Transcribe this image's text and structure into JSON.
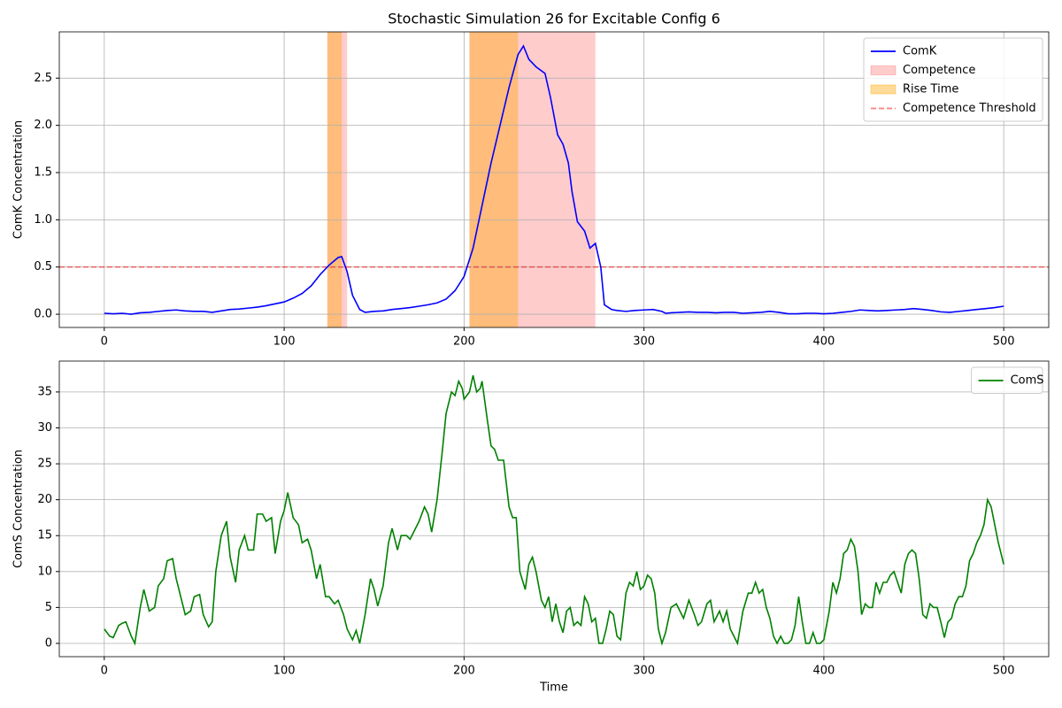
{
  "chart_data": [
    {
      "type": "line",
      "title": "Stochastic Simulation 26 for Excitable Config 6",
      "ylabel": "ComK Concentration",
      "x": [
        0,
        5,
        10,
        15,
        20,
        25,
        30,
        35,
        40,
        45,
        50,
        55,
        60,
        65,
        70,
        75,
        80,
        85,
        90,
        95,
        100,
        105,
        110,
        115,
        120,
        125,
        130,
        132,
        135,
        138,
        142,
        145,
        150,
        155,
        160,
        165,
        170,
        175,
        180,
        185,
        190,
        195,
        200,
        205,
        210,
        215,
        220,
        225,
        230,
        233,
        236,
        240,
        245,
        248,
        252,
        255,
        258,
        260,
        263,
        267,
        270,
        273,
        276,
        278,
        282,
        285,
        290,
        295,
        300,
        305,
        310,
        312,
        315,
        320,
        325,
        330,
        335,
        340,
        345,
        350,
        355,
        360,
        365,
        370,
        375,
        380,
        385,
        390,
        395,
        400,
        405,
        410,
        415,
        420,
        425,
        430,
        435,
        440,
        445,
        450,
        455,
        460,
        465,
        470,
        475,
        480,
        485,
        490,
        495,
        500
      ],
      "series": [
        {
          "name": "ComK",
          "color": "#0000ff",
          "values": [
            0.01,
            0.005,
            0.01,
            0.0,
            0.015,
            0.02,
            0.03,
            0.04,
            0.045,
            0.035,
            0.03,
            0.03,
            0.02,
            0.035,
            0.05,
            0.055,
            0.065,
            0.075,
            0.09,
            0.11,
            0.13,
            0.17,
            0.22,
            0.3,
            0.42,
            0.52,
            0.6,
            0.61,
            0.45,
            0.2,
            0.05,
            0.02,
            0.03,
            0.035,
            0.05,
            0.06,
            0.07,
            0.085,
            0.1,
            0.12,
            0.16,
            0.25,
            0.4,
            0.7,
            1.15,
            1.6,
            2.0,
            2.4,
            2.75,
            2.84,
            2.7,
            2.62,
            2.55,
            2.3,
            1.9,
            1.8,
            1.6,
            1.3,
            0.98,
            0.88,
            0.7,
            0.75,
            0.5,
            0.1,
            0.05,
            0.04,
            0.03,
            0.04,
            0.045,
            0.05,
            0.03,
            0.01,
            0.015,
            0.02,
            0.025,
            0.02,
            0.02,
            0.015,
            0.02,
            0.02,
            0.01,
            0.015,
            0.02,
            0.03,
            0.02,
            0.005,
            0.005,
            0.01,
            0.01,
            0.005,
            0.01,
            0.02,
            0.03,
            0.045,
            0.04,
            0.035,
            0.04,
            0.045,
            0.05,
            0.06,
            0.05,
            0.04,
            0.025,
            0.02,
            0.03,
            0.04,
            0.05,
            0.06,
            0.07,
            0.085
          ]
        }
      ],
      "spans": [
        {
          "name": "Competence",
          "color": "#ff0000",
          "opacity": 0.2,
          "ranges": [
            [
              124,
              135
            ],
            [
              203,
              273
            ]
          ]
        },
        {
          "name": "Rise Time",
          "color": "#ffa500",
          "opacity": 0.4,
          "ranges": [
            [
              124,
              132
            ],
            [
              203,
              230
            ]
          ]
        }
      ],
      "hlines": [
        {
          "name": "Competence Threshold",
          "color": "#ff0000",
          "opacity": 0.5,
          "dashed": true,
          "value": 0.5
        }
      ],
      "xlim": [
        -25,
        525
      ],
      "xticks": [
        0,
        100,
        200,
        300,
        400,
        500
      ],
      "ylim": [
        -0.14,
        2.99
      ],
      "yticks": [
        {
          "value": 0,
          "label": "0.0"
        },
        0.5,
        {
          "value": 1,
          "label": "1.0"
        },
        1.5,
        {
          "value": 2,
          "label": "2.0"
        },
        2.5
      ],
      "grid": true,
      "legend": "upper right"
    },
    {
      "type": "line",
      "xlabel": "Time",
      "ylabel": "ComS Concentration",
      "x": [
        0,
        3,
        5,
        8,
        10,
        12,
        15,
        17,
        20,
        22,
        25,
        28,
        30,
        33,
        35,
        38,
        40,
        43,
        45,
        48,
        50,
        53,
        55,
        58,
        60,
        62,
        65,
        68,
        70,
        73,
        75,
        78,
        80,
        83,
        85,
        88,
        90,
        93,
        95,
        98,
        100,
        102,
        105,
        108,
        110,
        113,
        115,
        118,
        120,
        123,
        125,
        128,
        130,
        133,
        135,
        138,
        140,
        142,
        145,
        148,
        150,
        152,
        155,
        158,
        160,
        163,
        165,
        168,
        170,
        173,
        175,
        178,
        180,
        182,
        185,
        188,
        190,
        193,
        195,
        197,
        199,
        200,
        203,
        205,
        207,
        209,
        210,
        213,
        215,
        217,
        219,
        222,
        225,
        227,
        229,
        231,
        234,
        236,
        238,
        240,
        243,
        245,
        247,
        249,
        251,
        253,
        255,
        257,
        259,
        261,
        263,
        265,
        267,
        269,
        271,
        273,
        275,
        277,
        279,
        281,
        283,
        285,
        287,
        290,
        292,
        294,
        296,
        298,
        300,
        302,
        304,
        306,
        308,
        310,
        312,
        315,
        318,
        320,
        322,
        325,
        328,
        330,
        332,
        335,
        337,
        339,
        342,
        344,
        346,
        348,
        350,
        352,
        355,
        358,
        360,
        362,
        364,
        366,
        368,
        370,
        372,
        374,
        376,
        378,
        380,
        382,
        384,
        386,
        388,
        390,
        392,
        394,
        396,
        398,
        400,
        403,
        405,
        407,
        409,
        411,
        413,
        415,
        417,
        419,
        421,
        423,
        425,
        427,
        429,
        431,
        433,
        435,
        437,
        439,
        441,
        443,
        445,
        447,
        449,
        451,
        453,
        455,
        457,
        459,
        461,
        463,
        465,
        467,
        469,
        471,
        473,
        475,
        477,
        479,
        481,
        483,
        485,
        487,
        489,
        491,
        493,
        495,
        497,
        499,
        500
      ],
      "series": [
        {
          "name": "ComS",
          "color": "#008000",
          "values": [
            2,
            1,
            0.8,
            2.5,
            2.8,
            3,
            1,
            0,
            5,
            7.5,
            4.5,
            5,
            8,
            9,
            11.5,
            11.8,
            9,
            6,
            4,
            4.5,
            6.5,
            6.8,
            4,
            2.3,
            3,
            10,
            15,
            17,
            12,
            8.5,
            13,
            15,
            13,
            13,
            18,
            18,
            17,
            17.5,
            12.5,
            17,
            18.5,
            21,
            17.5,
            16.5,
            14,
            14.5,
            13,
            9,
            11,
            6.5,
            6.5,
            5.5,
            6,
            4,
            2,
            0.5,
            1.8,
            0,
            4,
            9,
            7.5,
            5.2,
            8,
            14,
            16,
            13,
            15,
            15,
            14.5,
            16,
            17,
            19,
            18,
            15.5,
            20,
            27,
            32,
            35,
            34.5,
            36.5,
            35.5,
            34,
            35,
            37.3,
            35,
            35.5,
            36.5,
            31,
            27.5,
            27,
            25.5,
            25.5,
            19,
            17.5,
            17.5,
            10,
            7.5,
            11,
            12,
            10,
            6,
            5,
            6.5,
            3,
            5.5,
            3,
            1.5,
            4.5,
            5,
            2.5,
            3,
            2.5,
            6.5,
            5.5,
            3,
            3.5,
            0,
            0,
            2,
            4.5,
            4,
            1,
            0.5,
            7,
            8.5,
            8,
            10,
            7.5,
            8,
            9.5,
            9,
            7,
            2,
            0,
            1.5,
            5,
            5.5,
            4.5,
            3.5,
            6,
            4,
            2.5,
            3,
            5.5,
            6,
            3,
            4.5,
            3,
            4.5,
            2,
            1,
            0,
            4.5,
            7,
            7,
            8.5,
            7,
            7.5,
            5,
            3.5,
            1,
            0,
            1,
            0,
            0,
            0.5,
            2.5,
            6.5,
            3,
            0,
            0,
            1.5,
            0,
            0,
            0.5,
            4.5,
            8.5,
            7,
            9,
            12.5,
            13,
            14.5,
            13.5,
            10,
            4,
            5.5,
            5,
            5,
            8.5,
            7,
            8.5,
            8.5,
            9.5,
            10,
            8.5,
            7,
            11,
            12.5,
            13,
            12.5,
            9,
            4,
            3.5,
            5.5,
            5,
            5,
            3,
            0.8,
            3,
            3.5,
            5.5,
            6.5,
            6.5,
            8,
            11.5,
            12.5,
            14,
            15,
            16.5,
            20,
            19,
            16.5,
            14,
            12,
            11
          ]
        }
      ],
      "xlim": [
        -25,
        525
      ],
      "xticks": [
        0,
        100,
        200,
        300,
        400,
        500
      ],
      "ylim": [
        -1.85,
        39.3
      ],
      "yticks": [
        0,
        5,
        10,
        15,
        20,
        25,
        30,
        35
      ],
      "grid": true,
      "legend": "upper right"
    }
  ]
}
